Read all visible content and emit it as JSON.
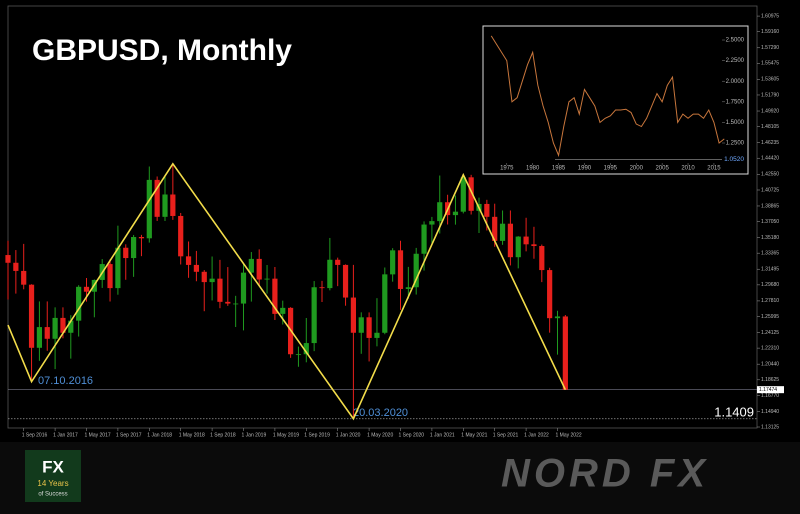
{
  "chart_data": [
    {
      "type": "candlestick",
      "title": "GBPUSD, Monthly",
      "up_color": "#1f9a1f",
      "down_color": "#e8201c",
      "categories": [
        null,
        null,
        "1 Sep 2016",
        null,
        null,
        null,
        "1 Jan 2017",
        null,
        null,
        null,
        "1 May 2017",
        null,
        null,
        null,
        "1 Sep 2017",
        null,
        null,
        null,
        "1 Jan 2018",
        null,
        null,
        null,
        "1 May 2018",
        null,
        null,
        null,
        "1 Sep 2018",
        null,
        null,
        null,
        "1 Jan 2019",
        null,
        null,
        null,
        "1 May 2019",
        null,
        null,
        null,
        "1 Sep 2019",
        null,
        null,
        null,
        "1 Jan 2020",
        null,
        null,
        null,
        "1 May 2020",
        null,
        null,
        null,
        "1 Sep 2020",
        null,
        null,
        null,
        "1 Jan 2021",
        null,
        null,
        null,
        "1 May 2021",
        null,
        null,
        null,
        "1 Sep 2021",
        null,
        null,
        null,
        "1 Jan 2022",
        null,
        null,
        null,
        "1 May 2022",
        null
      ],
      "open": [
        1.3315,
        1.3225,
        1.313,
        1.297,
        1.2235,
        1.2476,
        1.234,
        1.2583,
        1.241,
        1.2551,
        1.2945,
        1.2888,
        1.3025,
        1.321,
        1.293,
        1.34,
        1.328,
        1.3525,
        1.351,
        1.419,
        1.376,
        1.402,
        1.377,
        1.33,
        1.32,
        1.312,
        1.3,
        1.304,
        1.277,
        1.275,
        1.275,
        1.311,
        1.327,
        1.303,
        1.304,
        1.263,
        1.27,
        1.216,
        1.216,
        1.229,
        1.294,
        1.293,
        1.326,
        1.32,
        1.282,
        1.241,
        1.259,
        1.235,
        1.241,
        1.309,
        1.337,
        1.292,
        1.294,
        1.333,
        1.367,
        1.371,
        1.393,
        1.378,
        1.382,
        1.422,
        1.383,
        1.391,
        1.376,
        1.348,
        1.368,
        1.329,
        1.353,
        1.344,
        1.342,
        1.314,
        1.258,
        1.26
      ],
      "high": [
        1.3481,
        1.3373,
        1.3445,
        1.2975,
        1.2775,
        1.2775,
        1.2706,
        1.2706,
        1.2615,
        1.2964,
        1.3048,
        1.3031,
        1.3268,
        1.3267,
        1.3657,
        1.344,
        1.3549,
        1.355,
        1.4346,
        1.423,
        1.4245,
        1.4377,
        1.3805,
        1.3473,
        1.3363,
        1.314,
        1.3298,
        1.3259,
        1.3175,
        1.284,
        1.3215,
        1.335,
        1.3381,
        1.3199,
        1.3176,
        1.2784,
        1.2708,
        1.2249,
        1.2582,
        1.3012,
        1.3014,
        1.3514,
        1.3285,
        1.3206,
        1.32,
        1.2648,
        1.2647,
        1.2813,
        1.317,
        1.3395,
        1.3482,
        1.3177,
        1.3398,
        1.3707,
        1.3759,
        1.4241,
        1.4017,
        1.4009,
        1.425,
        1.4249,
        1.3984,
        1.3958,
        1.3913,
        1.3834,
        1.3834,
        1.3535,
        1.3749,
        1.3644,
        1.3437,
        1.3167,
        1.2667,
        1.2617
      ],
      "low": [
        1.2798,
        1.2866,
        1.2916,
        1.1841,
        1.2083,
        1.22,
        1.1987,
        1.2346,
        1.2109,
        1.2366,
        1.2773,
        1.259,
        1.2932,
        1.2774,
        1.2853,
        1.3027,
        1.3061,
        1.3302,
        1.346,
        1.3712,
        1.3711,
        1.3725,
        1.3205,
        1.305,
        1.301,
        1.2661,
        1.2786,
        1.2696,
        1.2723,
        1.2477,
        1.2438,
        1.2773,
        1.296,
        1.2866,
        1.2559,
        1.2506,
        1.2118,
        1.2014,
        1.2066,
        1.2196,
        1.2768,
        1.2904,
        1.2953,
        1.2725,
        1.1409,
        1.2165,
        1.2076,
        1.2252,
        1.2393,
        1.3005,
        1.2676,
        1.2806,
        1.2855,
        1.3134,
        1.3451,
        1.3566,
        1.3671,
        1.3669,
        1.38,
        1.3787,
        1.3572,
        1.3601,
        1.3411,
        1.3434,
        1.3194,
        1.316,
        1.3358,
        1.3272,
        1.3,
        1.2411,
        1.2155,
        1.1747
      ],
      "close": [
        1.3225,
        1.313,
        1.297,
        1.2235,
        1.2476,
        1.234,
        1.2583,
        1.241,
        1.2551,
        1.2945,
        1.2888,
        1.3025,
        1.321,
        1.293,
        1.34,
        1.328,
        1.3525,
        1.351,
        1.419,
        1.376,
        1.402,
        1.377,
        1.33,
        1.32,
        1.312,
        1.3,
        1.304,
        1.277,
        1.275,
        1.275,
        1.311,
        1.327,
        1.303,
        1.304,
        1.263,
        1.27,
        1.216,
        1.216,
        1.229,
        1.294,
        1.293,
        1.326,
        1.32,
        1.282,
        1.241,
        1.259,
        1.235,
        1.241,
        1.309,
        1.337,
        1.292,
        1.294,
        1.333,
        1.367,
        1.371,
        1.393,
        1.378,
        1.382,
        1.422,
        1.383,
        1.391,
        1.376,
        1.348,
        1.368,
        1.329,
        1.353,
        1.344,
        1.342,
        1.314,
        1.258,
        1.26,
        1.1747
      ],
      "ylim": [
        1.1301,
        1.6215
      ],
      "yticks": [
        {
          "value": 1.13125,
          "label": "1.13125"
        },
        {
          "value": 1.1494,
          "label": "1.14940"
        },
        {
          "value": 1.1677,
          "label": "1.16770"
        },
        {
          "value": 1.18625,
          "label": "1.18625"
        },
        {
          "value": 1.2044,
          "label": "1.20440"
        },
        {
          "value": 1.2231,
          "label": "1.22310"
        },
        {
          "value": 1.24125,
          "label": "1.24125"
        },
        {
          "value": 1.25995,
          "label": "1.25995"
        },
        {
          "value": 1.2781,
          "label": "1.27810"
        },
        {
          "value": 1.2968,
          "label": "1.29680"
        },
        {
          "value": 1.31495,
          "label": "1.31495"
        },
        {
          "value": 1.33365,
          "label": "1.33365"
        },
        {
          "value": 1.3518,
          "label": "1.35180"
        },
        {
          "value": 1.3705,
          "label": "1.37050"
        },
        {
          "value": 1.38865,
          "label": "1.38865"
        },
        {
          "value": 1.40725,
          "label": "1.40725"
        },
        {
          "value": 1.4255,
          "label": "1.42550"
        },
        {
          "value": 1.4442,
          "label": "1.44420"
        },
        {
          "value": 1.46235,
          "label": "1.46235"
        },
        {
          "value": 1.48105,
          "label": "1.48105"
        },
        {
          "value": 1.4992,
          "label": "1.49920"
        },
        {
          "value": 1.5179,
          "label": "1.51790"
        },
        {
          "value": 1.53605,
          "label": "1.53605"
        },
        {
          "value": 1.55475,
          "label": "1.55475"
        },
        {
          "value": 1.5729,
          "label": "1.57290"
        },
        {
          "value": 1.5916,
          "label": "1.59160"
        },
        {
          "value": 1.60975,
          "label": "1.60975"
        }
      ],
      "zigzag": {
        "color": "#f2dc4a",
        "x": [
          -1,
          3,
          21,
          44,
          58,
          71
        ],
        "values": [
          1.25,
          1.1841,
          1.4377,
          1.1409,
          1.425,
          1.1747
        ]
      },
      "price_line": {
        "value": 1.17474,
        "label": "1.17474"
      },
      "low_line": {
        "value": 1.1409,
        "label": "1.1409"
      },
      "annotations": [
        {
          "text": "07.10.2016",
          "color": "#4f8fd6"
        },
        {
          "text": "20.03.2020",
          "color": "#4f8fd6"
        }
      ]
    },
    {
      "type": "line",
      "color": "#c8763c",
      "x": [
        1972,
        1973,
        1974,
        1975,
        1976,
        1977,
        1978,
        1979,
        1980,
        1981,
        1982,
        1983,
        1984,
        1985,
        1986,
        1987,
        1988,
        1989,
        1990,
        1991,
        1992,
        1993,
        1994,
        1995,
        1996,
        1997,
        1998,
        1999,
        2000,
        2001,
        2002,
        2003,
        2004,
        2005,
        2006,
        2007,
        2008,
        2009,
        2010,
        2011,
        2012,
        2013,
        2014,
        2015,
        2016,
        2017
      ],
      "values": [
        2.55,
        2.45,
        2.35,
        2.25,
        1.75,
        1.8,
        2.0,
        2.2,
        2.35,
        1.95,
        1.7,
        1.5,
        1.25,
        1.1,
        1.45,
        1.75,
        1.8,
        1.6,
        1.9,
        1.8,
        1.7,
        1.5,
        1.55,
        1.58,
        1.65,
        1.65,
        1.66,
        1.62,
        1.48,
        1.45,
        1.55,
        1.7,
        1.85,
        1.75,
        1.95,
        2.05,
        1.5,
        1.6,
        1.55,
        1.6,
        1.6,
        1.55,
        1.65,
        1.5,
        1.25,
        1.3
      ],
      "xlim": [
        1970.6,
        2021
      ],
      "xticks": [
        1975,
        1980,
        1985,
        1990,
        1995,
        2000,
        2005,
        2010,
        2015
      ],
      "ylim": [
        0.898,
        2.658
      ],
      "yticks": [
        {
          "value": 1.25,
          "label": "1.2500"
        },
        {
          "value": 1.5,
          "label": "1.5000"
        },
        {
          "value": 1.75,
          "label": "1.7500"
        },
        {
          "value": 2.0,
          "label": "2.0000"
        },
        {
          "value": 2.25,
          "label": "2.2500"
        },
        {
          "value": 2.5,
          "label": "2.5000"
        }
      ],
      "reference_line": {
        "value": 1.052,
        "label": "1.0520"
      }
    }
  ],
  "branding": {
    "logo_left": [
      "FX",
      "14 Years",
      "of Success"
    ],
    "logo_right": "NORD FX"
  }
}
